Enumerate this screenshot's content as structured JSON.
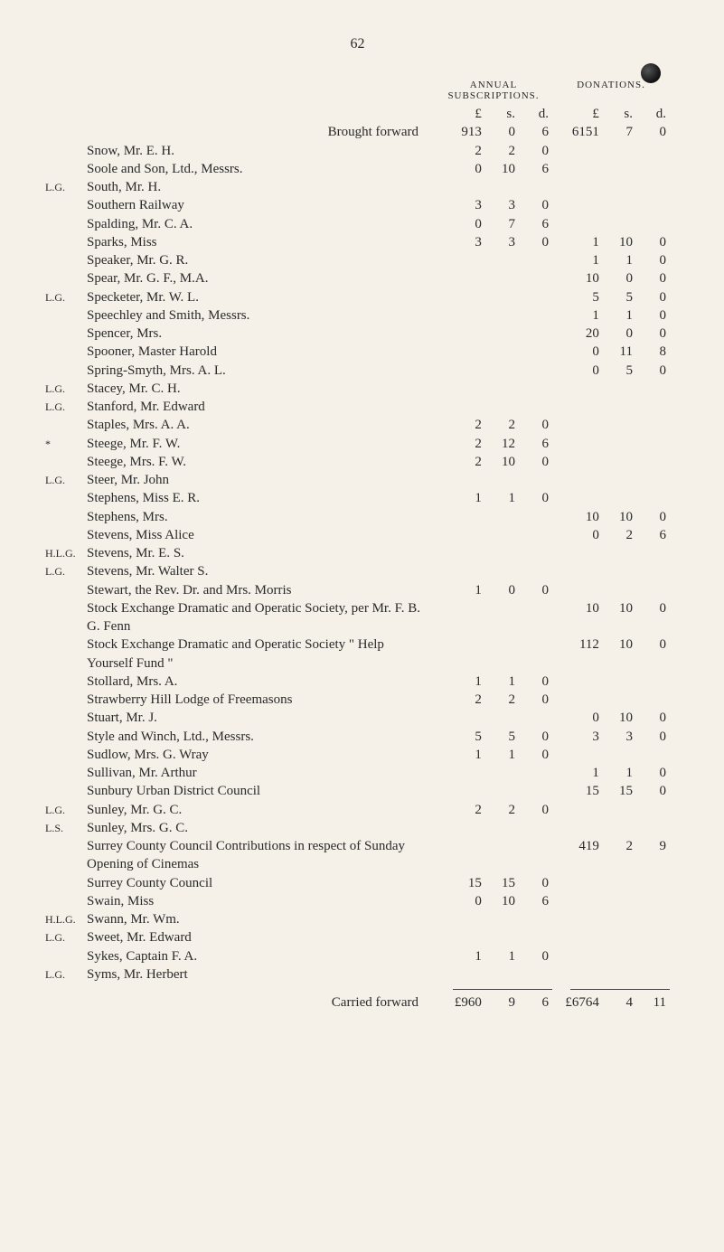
{
  "page_number": "62",
  "headers": {
    "subs": "ANNUAL SUBSCRIPTIONS.",
    "dons": "DONATIONS.",
    "L": "£",
    "s": "s.",
    "d": "d."
  },
  "brought_forward_label": "Brought forward",
  "carried_forward_label": "Carried forward",
  "bf_subs": {
    "L": "913",
    "s": "0",
    "d": "6"
  },
  "bf_dons": {
    "L": "6151",
    "s": "7",
    "d": "0"
  },
  "cf_subs": {
    "L": "£960",
    "s": "9",
    "d": "6"
  },
  "cf_dons": {
    "L": "£6764",
    "s": "4",
    "d": "11"
  },
  "rows": [
    {
      "tag": "",
      "name": "Snow, Mr. E. H.",
      "subs": {
        "L": "2",
        "s": "2",
        "d": "0"
      }
    },
    {
      "tag": "",
      "name": "Soole and Son, Ltd., Messrs.",
      "subs": {
        "L": "0",
        "s": "10",
        "d": "6"
      }
    },
    {
      "tag": "L.G.",
      "name": "South, Mr. H."
    },
    {
      "tag": "",
      "name": "Southern Railway",
      "subs": {
        "L": "3",
        "s": "3",
        "d": "0"
      }
    },
    {
      "tag": "",
      "name": "Spalding, Mr. C. A.",
      "subs": {
        "L": "0",
        "s": "7",
        "d": "6"
      }
    },
    {
      "tag": "",
      "name": "Sparks, Miss",
      "subs": {
        "L": "3",
        "s": "3",
        "d": "0"
      },
      "dons": {
        "L": "1",
        "s": "10",
        "d": "0"
      }
    },
    {
      "tag": "",
      "name": "Speaker, Mr. G. R.",
      "dons": {
        "L": "1",
        "s": "1",
        "d": "0"
      }
    },
    {
      "tag": "",
      "name": "Spear, Mr. G. F., M.A.",
      "dons": {
        "L": "10",
        "s": "0",
        "d": "0"
      }
    },
    {
      "tag": "L.G.",
      "name": "Specketer, Mr. W. L.",
      "dons": {
        "L": "5",
        "s": "5",
        "d": "0"
      }
    },
    {
      "tag": "",
      "name": "Speechley and Smith, Messrs.",
      "dons": {
        "L": "1",
        "s": "1",
        "d": "0"
      }
    },
    {
      "tag": "",
      "name": "Spencer, Mrs.",
      "dons": {
        "L": "20",
        "s": "0",
        "d": "0"
      }
    },
    {
      "tag": "",
      "name": "Spooner, Master Harold",
      "dons": {
        "L": "0",
        "s": "11",
        "d": "8"
      }
    },
    {
      "tag": "",
      "name": "Spring-Smyth, Mrs. A. L.",
      "dons": {
        "L": "0",
        "s": "5",
        "d": "0"
      }
    },
    {
      "tag": "L.G.",
      "name": "Stacey, Mr. C. H."
    },
    {
      "tag": "L.G.",
      "name": "Stanford, Mr. Edward"
    },
    {
      "tag": "",
      "name": "Staples, Mrs. A. A.",
      "subs": {
        "L": "2",
        "s": "2",
        "d": "0"
      }
    },
    {
      "tag": "*",
      "name": "Steege, Mr. F. W.",
      "subs": {
        "L": "2",
        "s": "12",
        "d": "6"
      }
    },
    {
      "tag": "",
      "name": "Steege, Mrs. F. W.",
      "subs": {
        "L": "2",
        "s": "10",
        "d": "0"
      }
    },
    {
      "tag": "L.G.",
      "name": "Steer, Mr. John"
    },
    {
      "tag": "",
      "name": "Stephens, Miss E. R.",
      "subs": {
        "L": "1",
        "s": "1",
        "d": "0"
      }
    },
    {
      "tag": "",
      "name": "Stephens, Mrs.",
      "dons": {
        "L": "10",
        "s": "10",
        "d": "0"
      }
    },
    {
      "tag": "",
      "name": "Stevens, Miss Alice",
      "dons": {
        "L": "0",
        "s": "2",
        "d": "6"
      }
    },
    {
      "tag": "H.L.G.",
      "name": "Stevens, Mr. E. S."
    },
    {
      "tag": "L.G.",
      "name": "Stevens, Mr. Walter S."
    },
    {
      "tag": "",
      "name": "Stewart, the Rev. Dr. and Mrs. Morris",
      "subs": {
        "L": "1",
        "s": "0",
        "d": "0"
      }
    },
    {
      "tag": "",
      "name": "Stock Exchange Dramatic and Operatic Society, per Mr. F. B. G. Fenn",
      "dons": {
        "L": "10",
        "s": "10",
        "d": "0"
      }
    },
    {
      "tag": "",
      "name": "Stock Exchange Dramatic and Operatic Society \" Help Yourself Fund \"",
      "dons": {
        "L": "112",
        "s": "10",
        "d": "0"
      }
    },
    {
      "tag": "",
      "name": "Stollard, Mrs. A.",
      "subs": {
        "L": "1",
        "s": "1",
        "d": "0"
      }
    },
    {
      "tag": "",
      "name": "Strawberry Hill Lodge of Freemasons",
      "subs": {
        "L": "2",
        "s": "2",
        "d": "0"
      }
    },
    {
      "tag": "",
      "name": "Stuart, Mr. J.",
      "dons": {
        "L": "0",
        "s": "10",
        "d": "0"
      }
    },
    {
      "tag": "",
      "name": "Style and Winch, Ltd., Messrs.",
      "subs": {
        "L": "5",
        "s": "5",
        "d": "0"
      },
      "dons": {
        "L": "3",
        "s": "3",
        "d": "0"
      }
    },
    {
      "tag": "",
      "name": "Sudlow, Mrs. G. Wray",
      "subs": {
        "L": "1",
        "s": "1",
        "d": "0"
      }
    },
    {
      "tag": "",
      "name": "Sullivan, Mr. Arthur",
      "dons": {
        "L": "1",
        "s": "1",
        "d": "0"
      }
    },
    {
      "tag": "",
      "name": "Sunbury Urban District Council",
      "dons": {
        "L": "15",
        "s": "15",
        "d": "0"
      }
    },
    {
      "tag": "L.G.",
      "name": "Sunley, Mr. G. C.",
      "subs": {
        "L": "2",
        "s": "2",
        "d": "0"
      }
    },
    {
      "tag": "L.S.",
      "name": "Sunley, Mrs. G. C."
    },
    {
      "tag": "",
      "name": "Surrey County Council Contributions in respect of Sunday Opening of Cinemas",
      "dons": {
        "L": "419",
        "s": "2",
        "d": "9"
      }
    },
    {
      "tag": "",
      "name": "Surrey County Council",
      "subs": {
        "L": "15",
        "s": "15",
        "d": "0"
      }
    },
    {
      "tag": "",
      "name": "Swain, Miss",
      "subs": {
        "L": "0",
        "s": "10",
        "d": "6"
      }
    },
    {
      "tag": "H.L.G.",
      "name": "Swann, Mr. Wm."
    },
    {
      "tag": "L.G.",
      "name": "Sweet, Mr. Edward"
    },
    {
      "tag": "",
      "name": "Sykes, Captain F. A.",
      "subs": {
        "L": "1",
        "s": "1",
        "d": "0"
      }
    },
    {
      "tag": "L.G.",
      "name": "Syms, Mr. Herbert"
    }
  ]
}
